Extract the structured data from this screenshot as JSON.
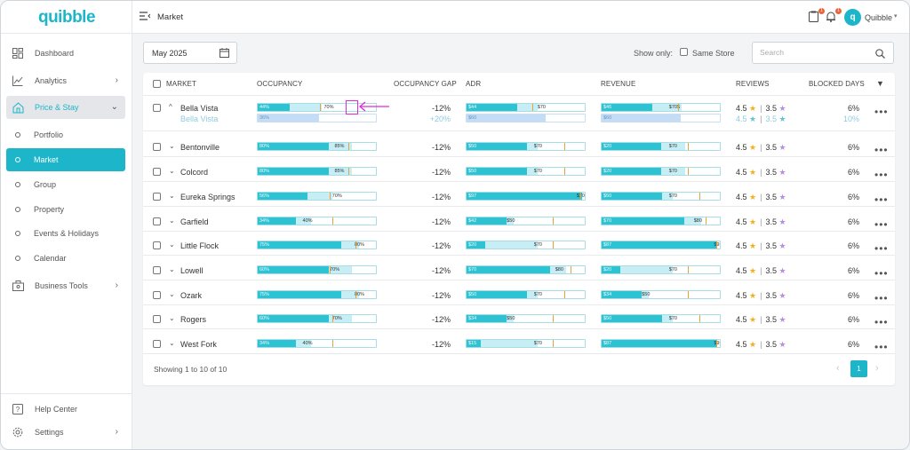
{
  "app": {
    "logo": "quibble"
  },
  "header": {
    "title": "Market",
    "user_name": "Quibble",
    "user_initial": "q",
    "badge_a": "1",
    "badge_b": "1"
  },
  "sidebar": {
    "items": [
      {
        "label": "Dashboard",
        "icon": "dashboard-icon"
      },
      {
        "label": "Analytics",
        "icon": "analytics-icon"
      },
      {
        "label": "Price & Stay",
        "icon": "price-stay-icon"
      },
      {
        "label": "Business Tools",
        "icon": "briefcase-icon"
      },
      {
        "label": "Help Center",
        "icon": "help-icon"
      },
      {
        "label": "Settings",
        "icon": "gear-icon"
      }
    ],
    "sub_items": [
      {
        "label": "Portfolio"
      },
      {
        "label": "Market"
      },
      {
        "label": "Group"
      },
      {
        "label": "Property"
      },
      {
        "label": "Events & Holidays"
      },
      {
        "label": "Calendar"
      }
    ]
  },
  "toolbar": {
    "date": "May 2025",
    "show_only": "Show only:",
    "same_store": "Same Store",
    "search_placeholder": "Search"
  },
  "table": {
    "columns": [
      "MARKET",
      "OCCUPANCY",
      "OCCUPANCY GAP",
      "ADR",
      "REVENUE",
      "REVIEWS",
      "BLOCKED DAYS"
    ],
    "expanded_row": {
      "market": "Bella Vista",
      "sub_market": "Bella Vista",
      "occ_fill": "44%",
      "occ_target": "70%",
      "occ_sub": "36%",
      "gap": "-12%",
      "gap_sub": "+20%",
      "adr_fill": "$44",
      "adr_target": "$70",
      "adr_sub": "$60",
      "rev_fill": "$46",
      "rev_target": "$70$",
      "rev_sub": "$60",
      "review_a": "4.5",
      "review_b": "3.5",
      "review_a_sub": "4.5",
      "review_b_sub": "3.5",
      "blocked": "6%",
      "blocked_sub": "10%"
    },
    "rows": [
      {
        "market": "Bentonville",
        "occ_fill": "80%",
        "occ_target": "85%",
        "gap": "-12%",
        "adr_fill": "$50",
        "adr_target": "$70",
        "rev_fill": "$20",
        "rev_target": "$70",
        "review_a": "4.5",
        "review_b": "3.5",
        "blocked": "6%"
      },
      {
        "market": "Colcord",
        "occ_fill": "80%",
        "occ_target": "85%",
        "gap": "-12%",
        "adr_fill": "$50",
        "adr_target": "$70",
        "rev_fill": "$20",
        "rev_target": "$70",
        "review_a": "4.5",
        "review_b": "3.5",
        "blocked": "6%"
      },
      {
        "market": "Eureka Springs",
        "occ_fill": "56%",
        "occ_target": "70%",
        "gap": "-12%",
        "adr_fill": "$97",
        "adr_target": "$70",
        "rev_fill": "$50",
        "rev_target": "$70",
        "review_a": "4.5",
        "review_b": "3.5",
        "blocked": "6%"
      },
      {
        "market": "Garfield",
        "occ_fill": "34%",
        "occ_target": "40%",
        "gap": "-12%",
        "adr_fill": "$42",
        "adr_target": "$50",
        "rev_fill": "$70",
        "rev_target": "$80",
        "review_a": "4.5",
        "review_b": "3.5",
        "blocked": "6%"
      },
      {
        "market": "Little Flock",
        "occ_fill": "75%",
        "occ_target": "80%",
        "gap": "-12%",
        "adr_fill": "$20",
        "adr_target": "$70",
        "rev_fill": "$87",
        "rev_target": "$95",
        "review_a": "4.5",
        "review_b": "3.5",
        "blocked": "6%"
      },
      {
        "market": "Lowell",
        "occ_fill": "60%",
        "occ_target": "70%",
        "gap": "-12%",
        "adr_fill": "$70",
        "adr_target": "$80",
        "rev_fill": "$20",
        "rev_target": "$70",
        "review_a": "4.5",
        "review_b": "3.5",
        "blocked": "6%"
      },
      {
        "market": "Ozark",
        "occ_fill": "75%",
        "occ_target": "80%",
        "gap": "-12%",
        "adr_fill": "$50",
        "adr_target": "$70",
        "rev_fill": "$34",
        "rev_target": "$50",
        "review_a": "4.5",
        "review_b": "3.5",
        "blocked": "6%"
      },
      {
        "market": "Rogers",
        "occ_fill": "60%",
        "occ_target": "70%",
        "gap": "-12%",
        "adr_fill": "$34",
        "adr_target": "$50",
        "rev_fill": "$50",
        "rev_target": "$70",
        "review_a": "4.5",
        "review_b": "3.5",
        "blocked": "6%"
      },
      {
        "market": "West Fork",
        "occ_fill": "34%",
        "occ_target": "40%",
        "gap": "-12%",
        "adr_fill": "$15",
        "adr_target": "$70",
        "rev_fill": "$87",
        "rev_target": "$95",
        "review_a": "4.5",
        "review_b": "3.5",
        "blocked": "6%"
      }
    ]
  },
  "footer": {
    "showing": "Showing 1 to 10 of 10",
    "page": "1"
  },
  "colors": {
    "accent": "#1cb5c9",
    "highlight": "#e02ad2",
    "star": "#f2b01e",
    "star_alt": "#b58ee0"
  }
}
